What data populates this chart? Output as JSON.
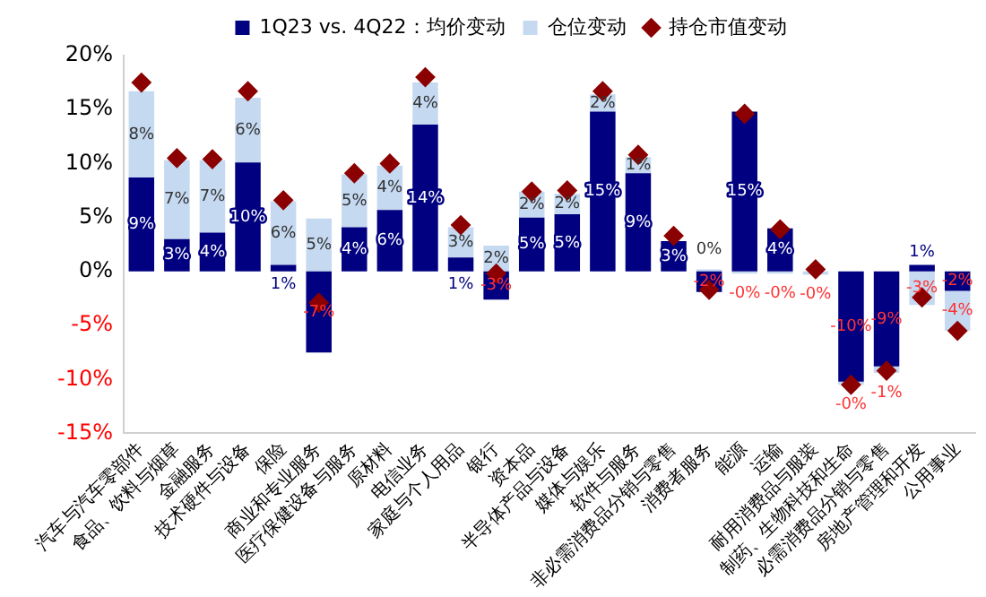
{
  "chart_data": {
    "type": "bar",
    "stacked": true,
    "legend": "top",
    "grid": false,
    "categories": [
      "汽车与汽车零部件",
      "食品、饮料与烟草",
      "金融服务",
      "技术硬件与设备",
      "保险",
      "商业和专业服务",
      "医疗保健设备与服务",
      "原材料",
      "电信业务",
      "家庭与个人用品",
      "银行",
      "资本品",
      "半导体产品与设备",
      "媒体与娱乐",
      "软件与服务",
      "非必需消费品分销与零售",
      "消费者服务",
      "能源",
      "运输",
      "耐用消费品与服装",
      "制药、生物科技和生命",
      "必需消费品分销与零售",
      "房地产管理和开发",
      "公用事业"
    ],
    "ylim": [
      -15,
      20
    ],
    "yticks": [
      {
        "value": -15,
        "label": "-15%"
      },
      {
        "value": -10,
        "label": "-10%"
      },
      {
        "value": -5,
        "label": "-5%"
      },
      {
        "value": 0,
        "label": "0%"
      },
      {
        "value": 5,
        "label": "5%"
      },
      {
        "value": 10,
        "label": "10%"
      },
      {
        "value": 15,
        "label": "15%"
      },
      {
        "value": 20,
        "label": "20%"
      }
    ],
    "series": [
      {
        "name": "1Q23 vs. 4Q22：均价变动",
        "color": "#000080",
        "values": [
          8.7,
          3.0,
          3.6,
          10.1,
          0.6,
          -7.5,
          4.1,
          5.7,
          13.6,
          1.3,
          -2.6,
          5.0,
          5.3,
          14.8,
          9.1,
          2.8,
          -1.9,
          14.8,
          4.0,
          null,
          -10.2,
          -8.8,
          0.6,
          -1.8
        ],
        "value_labels": [
          "9%",
          "3%",
          "4%",
          "10%",
          "1%",
          "-7%",
          "4%",
          "6%",
          "14%",
          "1%",
          "-3%",
          "5%",
          "5%",
          "15%",
          "9%",
          "3%",
          "-2%",
          "15%",
          "4%",
          null,
          "-10%",
          "-9%",
          "1%",
          "-2%"
        ]
      },
      {
        "name": "仓位变动",
        "color": "#c5d9f1",
        "values": [
          8.0,
          7.3,
          6.7,
          6.0,
          5.9,
          4.9,
          4.9,
          4.1,
          3.9,
          2.8,
          2.4,
          2.4,
          1.9,
          1.6,
          1.5,
          null,
          0.2,
          -0.2,
          -0.2,
          -0.3,
          -0.3,
          -0.6,
          -3.1,
          -3.7
        ],
        "value_labels": [
          "8%",
          "7%",
          "7%",
          "6%",
          "6%",
          "5%",
          "5%",
          "4%",
          "4%",
          "3%",
          "2%",
          "2%",
          "2%",
          "2%",
          "1%",
          null,
          "0%",
          "-0%",
          "-0%",
          "-0%",
          "-0%",
          "-1%",
          "-3%",
          "-4%"
        ]
      },
      {
        "name": "持仓市值变动",
        "type": "scatter",
        "marker": "diamond",
        "color": "#8b0000",
        "x": [
          "汽车与汽车零部件",
          "食品、饮料与烟草",
          "金融服务",
          "技术硬件与设备",
          "保险",
          "商业和专业服务",
          "医疗保健设备与服务",
          "原材料",
          "电信业务",
          "家庭与个人用品",
          "银行",
          "资本品",
          "半导体产品与设备",
          "媒体与娱乐",
          "软件与服务",
          "非必需消费品分销与零售",
          "消费者服务",
          "能源",
          "运输",
          "耐用消费品与服装",
          "制药、生物科技和生命",
          "必需消费品分销与零售",
          "房地产管理和开发",
          "公用事业"
        ],
        "values": [
          17.5,
          10.5,
          10.4,
          16.7,
          6.6,
          -2.9,
          9.1,
          10.0,
          18.0,
          4.3,
          -0.2,
          7.4,
          7.5,
          16.7,
          10.8,
          3.3,
          -1.7,
          14.6,
          3.9,
          0.2,
          -10.5,
          -9.2,
          -2.4,
          -5.5
        ]
      }
    ]
  }
}
